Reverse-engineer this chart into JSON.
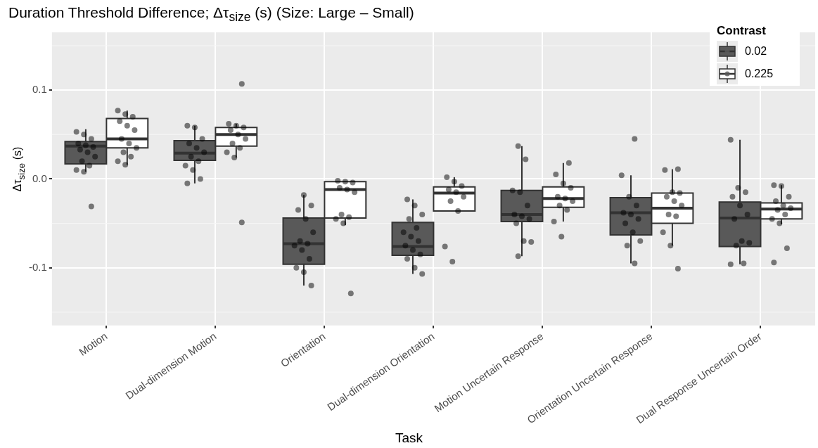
{
  "chart_data": {
    "type": "box",
    "title": "Duration Threshold Difference; Δτ$_{size}$ (s) (Size: Large – Small)",
    "xlabel": "Task",
    "ylabel": "Δτ$_{size}$ (s)",
    "legend_title": "Contrast",
    "legend": "top right",
    "grid": true,
    "marker": "circle",
    "categories": [
      "Motion",
      "Dual-dimension Motion",
      "Orientation",
      "Dual-dimension Orientation",
      "Motion Uncertain Response",
      "Orientation Uncertain Response",
      "Dual Response Uncertain Order"
    ],
    "ylim": [
      -0.165,
      0.165
    ],
    "yticks": [
      -0.1,
      {
        "value": 0,
        "label": "0.0"
      },
      0.1
    ],
    "series": [
      {
        "name": "0.02",
        "color": "#595959",
        "boxes": [
          {
            "low": 0.008,
            "q1": 0.017,
            "median": 0.037,
            "q3": 0.042,
            "high": 0.056
          },
          {
            "low": -0.005,
            "q1": 0.021,
            "median": 0.029,
            "q3": 0.043,
            "high": 0.06
          },
          {
            "low": -0.12,
            "q1": -0.096,
            "median": -0.073,
            "q3": -0.044,
            "high": -0.018
          },
          {
            "low": -0.107,
            "q1": -0.086,
            "median": -0.076,
            "q3": -0.049,
            "high": -0.023
          },
          {
            "low": -0.087,
            "q1": -0.048,
            "median": -0.04,
            "q3": -0.013,
            "high": 0.037
          },
          {
            "low": -0.095,
            "q1": -0.063,
            "median": -0.038,
            "q3": -0.021,
            "high": 0.004
          },
          {
            "low": -0.096,
            "q1": -0.076,
            "median": -0.044,
            "q3": -0.026,
            "high": 0.044
          }
        ]
      },
      {
        "name": "0.225",
        "color": "#ffffff",
        "boxes": [
          {
            "low": 0.016,
            "q1": 0.035,
            "median": 0.045,
            "q3": 0.068,
            "high": 0.077
          },
          {
            "low": 0.024,
            "q1": 0.037,
            "median": 0.05,
            "q3": 0.058,
            "high": 0.062
          },
          {
            "low": -0.052,
            "q1": -0.044,
            "median": -0.012,
            "q3": -0.003,
            "high": -0.003
          },
          {
            "low": -0.036,
            "q1": -0.036,
            "median": -0.016,
            "q3": -0.009,
            "high": 0.002
          },
          {
            "low": -0.048,
            "q1": -0.032,
            "median": -0.022,
            "q3": -0.009,
            "high": 0.018
          },
          {
            "low": -0.075,
            "q1": -0.05,
            "median": -0.033,
            "q3": -0.016,
            "high": 0.011
          },
          {
            "low": -0.051,
            "q1": -0.045,
            "median": -0.034,
            "q3": -0.027,
            "high": -0.007
          }
        ]
      },
      {
        "type": "scatter",
        "color": "#000000",
        "x": [
          "Motion",
          "Motion",
          "Motion",
          "Motion",
          "Motion",
          "Motion",
          "Motion",
          "Motion",
          "Motion",
          "Motion",
          "Motion",
          "Motion",
          "Motion",
          "Motion",
          "Dual-dimension Motion",
          "Dual-dimension Motion",
          "Dual-dimension Motion",
          "Dual-dimension Motion",
          "Dual-dimension Motion",
          "Dual-dimension Motion",
          "Dual-dimension Motion",
          "Dual-dimension Motion",
          "Dual-dimension Motion",
          "Dual-dimension Motion",
          "Dual-dimension Motion",
          "Dual-dimension Motion",
          "Orientation",
          "Orientation",
          "Orientation",
          "Orientation",
          "Orientation",
          "Orientation",
          "Orientation",
          "Orientation",
          "Orientation",
          "Orientation",
          "Orientation",
          "Orientation",
          "Orientation",
          "Dual-dimension Orientation",
          "Dual-dimension Orientation",
          "Dual-dimension Orientation",
          "Dual-dimension Orientation",
          "Dual-dimension Orientation",
          "Dual-dimension Orientation",
          "Dual-dimension Orientation",
          "Dual-dimension Orientation",
          "Dual-dimension Orientation",
          "Dual-dimension Orientation",
          "Dual-dimension Orientation",
          "Dual-dimension Orientation",
          "Dual-dimension Orientation",
          "Dual-dimension Orientation",
          "Motion Uncertain Response",
          "Motion Uncertain Response",
          "Motion Uncertain Response",
          "Motion Uncertain Response",
          "Motion Uncertain Response",
          "Motion Uncertain Response",
          "Motion Uncertain Response",
          "Motion Uncertain Response",
          "Motion Uncertain Response",
          "Motion Uncertain Response",
          "Motion Uncertain Response",
          "Motion Uncertain Response",
          "Orientation Uncertain Response",
          "Orientation Uncertain Response",
          "Orientation Uncertain Response",
          "Orientation Uncertain Response",
          "Orientation Uncertain Response",
          "Orientation Uncertain Response",
          "Orientation Uncertain Response",
          "Orientation Uncertain Response",
          "Orientation Uncertain Response",
          "Orientation Uncertain Response",
          "Orientation Uncertain Response",
          "Orientation Uncertain Response",
          "Dual Response Uncertain Order",
          "Dual Response Uncertain Order",
          "Dual Response Uncertain Order",
          "Dual Response Uncertain Order",
          "Dual Response Uncertain Order",
          "Dual Response Uncertain Order",
          "Dual Response Uncertain Order",
          "Dual Response Uncertain Order",
          "Dual Response Uncertain Order",
          "Dual Response Uncertain Order",
          "Dual Response Uncertain Order",
          "Dual Response Uncertain Order"
        ],
        "values": [
          0.053,
          0.05,
          0.045,
          0.04,
          0.038,
          0.036,
          0.033,
          0.03,
          0.025,
          0.02,
          0.015,
          0.01,
          0.008,
          -0.031,
          0.06,
          0.058,
          0.045,
          0.04,
          0.035,
          0.03,
          0.025,
          0.02,
          0.015,
          0.01,
          0,
          -0.005,
          -0.018,
          -0.03,
          -0.035,
          -0.045,
          -0.06,
          -0.07,
          -0.073,
          -0.075,
          -0.08,
          -0.09,
          -0.1,
          -0.105,
          -0.12,
          -0.023,
          -0.03,
          -0.04,
          -0.045,
          -0.055,
          -0.06,
          -0.065,
          -0.07,
          -0.075,
          -0.08,
          -0.085,
          -0.09,
          -0.1,
          -0.107,
          0.037,
          0.022,
          -0.013,
          -0.015,
          -0.03,
          -0.04,
          -0.042,
          -0.045,
          -0.05,
          -0.07,
          -0.071,
          -0.087,
          0.045,
          0.004,
          -0.02,
          -0.03,
          -0.038,
          -0.04,
          -0.045,
          -0.05,
          -0.06,
          -0.07,
          -0.075,
          -0.095,
          0.044,
          -0.01,
          -0.015,
          -0.02,
          -0.03,
          -0.04,
          -0.045,
          -0.07,
          -0.072,
          -0.075,
          -0.095,
          -0.096
        ]
      },
      {
        "type": "scatter",
        "color": "#000000",
        "x": [
          "Motion",
          "Motion",
          "Motion",
          "Motion",
          "Motion",
          "Motion",
          "Motion",
          "Motion",
          "Motion",
          "Motion",
          "Motion",
          "Motion",
          "Motion",
          "Dual-dimension Motion",
          "Dual-dimension Motion",
          "Dual-dimension Motion",
          "Dual-dimension Motion",
          "Dual-dimension Motion",
          "Dual-dimension Motion",
          "Dual-dimension Motion",
          "Dual-dimension Motion",
          "Dual-dimension Motion",
          "Dual-dimension Motion",
          "Dual-dimension Motion",
          "Dual-dimension Motion",
          "Orientation",
          "Orientation",
          "Orientation",
          "Orientation",
          "Orientation",
          "Orientation",
          "Orientation",
          "Orientation",
          "Orientation",
          "Orientation",
          "Orientation",
          "Dual-dimension Orientation",
          "Dual-dimension Orientation",
          "Dual-dimension Orientation",
          "Dual-dimension Orientation",
          "Dual-dimension Orientation",
          "Dual-dimension Orientation",
          "Dual-dimension Orientation",
          "Dual-dimension Orientation",
          "Dual-dimension Orientation",
          "Dual-dimension Orientation",
          "Motion Uncertain Response",
          "Motion Uncertain Response",
          "Motion Uncertain Response",
          "Motion Uncertain Response",
          "Motion Uncertain Response",
          "Motion Uncertain Response",
          "Motion Uncertain Response",
          "Motion Uncertain Response",
          "Motion Uncertain Response",
          "Motion Uncertain Response",
          "Motion Uncertain Response",
          "Orientation Uncertain Response",
          "Orientation Uncertain Response",
          "Orientation Uncertain Response",
          "Orientation Uncertain Response",
          "Orientation Uncertain Response",
          "Orientation Uncertain Response",
          "Orientation Uncertain Response",
          "Orientation Uncertain Response",
          "Orientation Uncertain Response",
          "Orientation Uncertain Response",
          "Orientation Uncertain Response",
          "Orientation Uncertain Response",
          "Dual Response Uncertain Order",
          "Dual Response Uncertain Order",
          "Dual Response Uncertain Order",
          "Dual Response Uncertain Order",
          "Dual Response Uncertain Order",
          "Dual Response Uncertain Order",
          "Dual Response Uncertain Order",
          "Dual Response Uncertain Order",
          "Dual Response Uncertain Order",
          "Dual Response Uncertain Order",
          "Dual Response Uncertain Order",
          "Dual Response Uncertain Order"
        ],
        "values": [
          0.077,
          0.073,
          0.07,
          0.065,
          0.06,
          0.055,
          0.045,
          0.04,
          0.035,
          0.03,
          0.025,
          0.02,
          0.016,
          0.107,
          0.062,
          0.06,
          0.058,
          0.055,
          0.05,
          0.045,
          0.04,
          0.035,
          0.03,
          0.024,
          -0.049,
          -0.002,
          -0.003,
          -0.004,
          -0.01,
          -0.012,
          -0.015,
          -0.04,
          -0.043,
          -0.045,
          -0.05,
          -0.129,
          0.002,
          -0.003,
          -0.008,
          -0.012,
          -0.015,
          -0.02,
          -0.025,
          -0.036,
          -0.076,
          -0.093,
          0.018,
          0.005,
          -0.005,
          -0.01,
          -0.02,
          -0.022,
          -0.025,
          -0.03,
          -0.035,
          -0.048,
          -0.065,
          0.011,
          0.01,
          -0.015,
          -0.016,
          -0.02,
          -0.025,
          -0.03,
          -0.04,
          -0.042,
          -0.06,
          -0.075,
          -0.101,
          -0.007,
          -0.008,
          -0.02,
          -0.025,
          -0.03,
          -0.033,
          -0.035,
          -0.04,
          -0.045,
          -0.05,
          -0.078,
          -0.094
        ]
      }
    ]
  }
}
